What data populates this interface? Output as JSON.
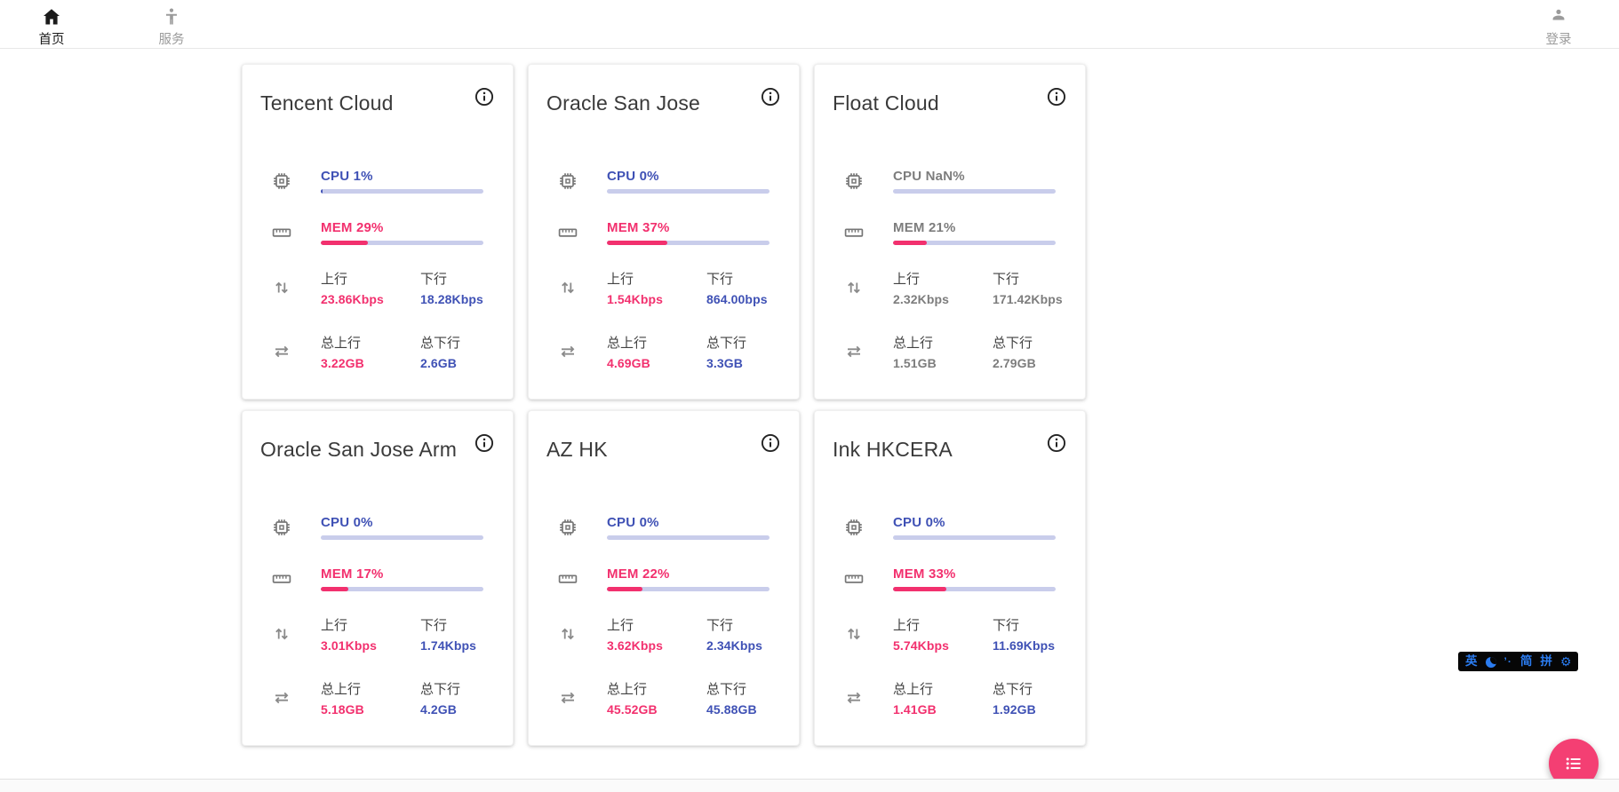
{
  "navbar": {
    "home": {
      "label": "首页",
      "icon": "home-icon",
      "active": true
    },
    "services": {
      "label": "服务",
      "icon": "person-icon",
      "active": false
    },
    "login": {
      "label": "登录",
      "icon": "person-icon",
      "active": false
    }
  },
  "cards": [
    {
      "title": "Tencent Cloud",
      "cpu_text": "CPU 1%",
      "cpu_pct": 1,
      "mem_text": "MEM 29%",
      "mem_pct": 29,
      "up_label": "上行",
      "up_value": "23.86Kbps",
      "down_label": "下行",
      "down_value": "18.28Kbps",
      "total_up_label": "总上行",
      "total_up_value": "3.22GB",
      "total_down_label": "总下行",
      "total_down_value": "2.6GB",
      "muted": false
    },
    {
      "title": "Oracle San Jose",
      "cpu_text": "CPU 0%",
      "cpu_pct": 0,
      "mem_text": "MEM 37%",
      "mem_pct": 37,
      "up_label": "上行",
      "up_value": "1.54Kbps",
      "down_label": "下行",
      "down_value": "864.00bps",
      "total_up_label": "总上行",
      "total_up_value": "4.69GB",
      "total_down_label": "总下行",
      "total_down_value": "3.3GB",
      "muted": false
    },
    {
      "title": "Float Cloud",
      "cpu_text": "CPU NaN%",
      "cpu_pct": 0,
      "mem_text": "MEM 21%",
      "mem_pct": 21,
      "up_label": "上行",
      "up_value": "2.32Kbps",
      "down_label": "下行",
      "down_value": "171.42Kbps",
      "total_up_label": "总上行",
      "total_up_value": "1.51GB",
      "total_down_label": "总下行",
      "total_down_value": "2.79GB",
      "muted": true
    },
    {
      "title": "Oracle San Jose Arm",
      "cpu_text": "CPU 0%",
      "cpu_pct": 0,
      "mem_text": "MEM 17%",
      "mem_pct": 17,
      "up_label": "上行",
      "up_value": "3.01Kbps",
      "down_label": "下行",
      "down_value": "1.74Kbps",
      "total_up_label": "总上行",
      "total_up_value": "5.18GB",
      "total_down_label": "总下行",
      "total_down_value": "4.2GB",
      "muted": false
    },
    {
      "title": "AZ HK",
      "cpu_text": "CPU 0%",
      "cpu_pct": 0,
      "mem_text": "MEM 22%",
      "mem_pct": 22,
      "up_label": "上行",
      "up_value": "3.62Kbps",
      "down_label": "下行",
      "down_value": "2.34Kbps",
      "total_up_label": "总上行",
      "total_up_value": "45.52GB",
      "total_down_label": "总下行",
      "total_down_value": "45.88GB",
      "muted": false
    },
    {
      "title": "Ink HKCERA",
      "cpu_text": "CPU 0%",
      "cpu_pct": 0,
      "mem_text": "MEM 33%",
      "mem_pct": 33,
      "up_label": "上行",
      "up_value": "5.74Kbps",
      "down_label": "下行",
      "down_value": "11.69Kbps",
      "total_up_label": "总上行",
      "total_up_value": "1.41GB",
      "total_down_label": "总下行",
      "total_down_value": "1.92GB",
      "muted": false
    }
  ],
  "ime": {
    "lang": "英",
    "mode_icons": [
      "moon-icon",
      "punctuation-marks"
    ],
    "marks": "’·",
    "simplified": "简",
    "pinyin": "拼",
    "settings_icon": "gear-icon"
  },
  "fab": {
    "icon": "list-icon"
  },
  "colors": {
    "accent_indigo": "#3f51b5",
    "accent_pink": "#f2306e",
    "bar_track": "#c9cdeb",
    "muted_text": "#7d7d7d",
    "fab_pink": "#f43f73",
    "ime_blue": "#2b7cf0"
  }
}
